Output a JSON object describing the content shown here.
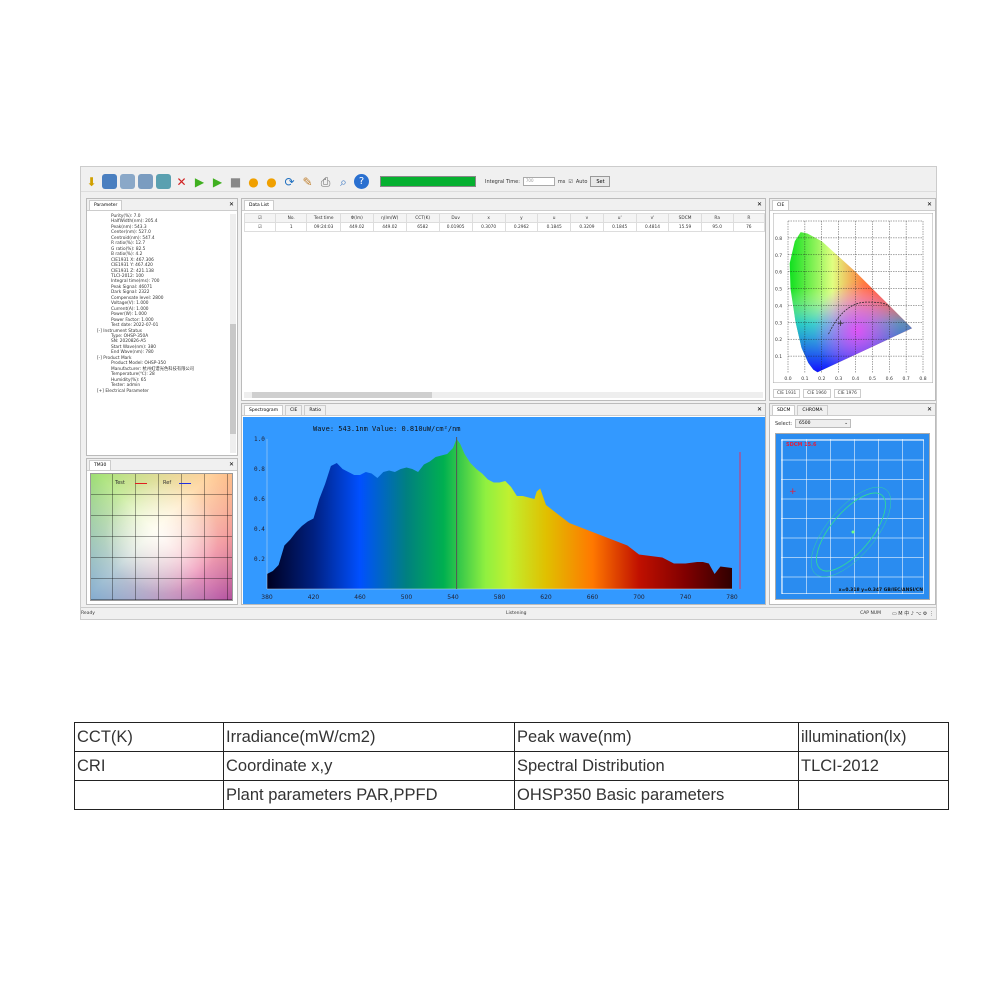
{
  "toolbar": {
    "integral_time_label": "Integral Time:",
    "integral_time_value": "700",
    "unit": "ms",
    "auto_label": "Auto",
    "set_label": "Set",
    "progress": 100,
    "icons": [
      "import-icon",
      "save-icon",
      "database-icon",
      "export-icon",
      "table-icon",
      "delete-icon",
      "play-icon",
      "play-continuous-icon",
      "stop-icon",
      "bulb-icon",
      "bulb-settings-icon",
      "refresh-icon",
      "edit-icon",
      "printer-icon",
      "search-document-icon",
      "help-icon"
    ]
  },
  "parameter": {
    "title": "Parameter",
    "items": [
      {
        "t": "Purity(%): 7.0",
        "lv": 1
      },
      {
        "t": "HalfWidth(nm): 205.4",
        "lv": 1
      },
      {
        "t": "Peak(nm): 543.3",
        "lv": 1
      },
      {
        "t": "Center(nm): 527.0",
        "lv": 1
      },
      {
        "t": "Centroid(nm): 547.4",
        "lv": 1
      },
      {
        "t": "R ratio(%): 12.7",
        "lv": 1
      },
      {
        "t": "G ratio(%): 82.5",
        "lv": 1
      },
      {
        "t": "B ratio(%): 4.2",
        "lv": 1
      },
      {
        "t": "CIE1931 X: 467.306",
        "lv": 1
      },
      {
        "t": "CIE1931 Y: 467.420",
        "lv": 1
      },
      {
        "t": "CIE1931 Z: 421.138",
        "lv": 1
      },
      {
        "t": "TLCI-2012: 100",
        "lv": 1
      },
      {
        "t": "Integral time(ms): 700",
        "lv": 1
      },
      {
        "t": "Peak Signal: 46071",
        "lv": 1
      },
      {
        "t": "Dark Signal: 2322",
        "lv": 1
      },
      {
        "t": "Compensate level: 2800",
        "lv": 1
      },
      {
        "t": "Voltage(V): 1.000",
        "lv": 1
      },
      {
        "t": "Current(A): 1.000",
        "lv": 1
      },
      {
        "t": "Power(W): 1.000",
        "lv": 1
      },
      {
        "t": "Power Factor: 1.000",
        "lv": 1
      },
      {
        "t": "Test date: 2022-07-01",
        "lv": 1
      },
      {
        "t": "[-] Instrument Status",
        "lv": 0
      },
      {
        "t": "Type: OHSP-350A",
        "lv": 1
      },
      {
        "t": "SN: 2020826-A5",
        "lv": 1
      },
      {
        "t": "Start Wave(nm): 380",
        "lv": 1
      },
      {
        "t": "End Wave(nm): 780",
        "lv": 1
      },
      {
        "t": "[-] Product Mark",
        "lv": 0
      },
      {
        "t": "Product Model: OHSP-350",
        "lv": 1
      },
      {
        "t": "Manufacturer: 杭州虹谱光色科技有限公司",
        "lv": 1
      },
      {
        "t": "Temperature(℃): 28",
        "lv": 1
      },
      {
        "t": "Humidity(%): 65",
        "lv": 1
      },
      {
        "t": "Tester: admin",
        "lv": 1
      },
      {
        "t": "[+] Electrical Parameter",
        "lv": 0
      }
    ]
  },
  "tm30": {
    "title": "TM30",
    "legend_test": "Test",
    "legend_ref": "Ref",
    "test_color": "#e02020",
    "ref_color": "#2030e0"
  },
  "datalist": {
    "title": "Data List",
    "headers": [
      "No.",
      "Test time",
      "Φ(lm)",
      "η(lm/W)",
      "CCT(K)",
      "Duv",
      "x",
      "y",
      "u",
      "v",
      "u'",
      "v'",
      "SDCM",
      "Ra",
      "R"
    ],
    "rows": [
      [
        "1",
        "09:24:03",
        "449.02",
        "449.02",
        "6582",
        "0.01905",
        "0.3070",
        "0.2962",
        "0.1845",
        "0.3209",
        "0.1845",
        "0.4814",
        "15.59",
        "95.0",
        "76"
      ]
    ]
  },
  "spectrum": {
    "tabs": [
      "Spectrogram",
      "CIE",
      "Ratio"
    ],
    "readout": "Wave: 543.1nm Value: 0.810uW/cm²/nm",
    "background": "#3399ff"
  },
  "chart_data": {
    "type": "area",
    "xlabel": "",
    "ylabel": "",
    "xlim": [
      380,
      780
    ],
    "ylim": [
      0,
      1.0
    ],
    "xticks": [
      "380",
      "420",
      "460",
      "500",
      "540",
      "580",
      "620",
      "660",
      "700",
      "740",
      "780"
    ],
    "yticks": [
      "0.2",
      "0.4",
      "0.6",
      "0.8",
      "1.0"
    ],
    "x": [
      380,
      385,
      390,
      395,
      400,
      405,
      410,
      415,
      420,
      425,
      430,
      435,
      440,
      445,
      450,
      455,
      460,
      465,
      470,
      475,
      480,
      485,
      490,
      495,
      500,
      505,
      510,
      515,
      520,
      525,
      530,
      535,
      540,
      543,
      546,
      550,
      555,
      560,
      565,
      570,
      575,
      580,
      585,
      590,
      595,
      600,
      605,
      610,
      612,
      615,
      620,
      630,
      640,
      650,
      660,
      670,
      680,
      690,
      700,
      710,
      720,
      730,
      740,
      750,
      755,
      760,
      765,
      770,
      780
    ],
    "y": [
      0.1,
      0.12,
      0.16,
      0.29,
      0.33,
      0.38,
      0.42,
      0.45,
      0.47,
      0.6,
      0.7,
      0.82,
      0.84,
      0.8,
      0.78,
      0.76,
      0.76,
      0.78,
      0.77,
      0.74,
      0.78,
      0.79,
      0.78,
      0.8,
      0.81,
      0.8,
      0.78,
      0.83,
      0.85,
      0.88,
      0.89,
      0.9,
      0.94,
      1.0,
      0.97,
      0.9,
      0.84,
      0.8,
      0.77,
      0.73,
      0.71,
      0.71,
      0.72,
      0.68,
      0.62,
      0.62,
      0.61,
      0.6,
      0.65,
      0.67,
      0.56,
      0.5,
      0.44,
      0.41,
      0.38,
      0.35,
      0.32,
      0.29,
      0.23,
      0.22,
      0.21,
      0.17,
      0.17,
      0.18,
      0.18,
      0.17,
      0.1,
      0.15,
      0.14
    ],
    "cursor_x": 543.1
  },
  "cie": {
    "title": "CIE",
    "tabs": [
      "CIE 1931",
      "CIE 1960",
      "CIE 1976"
    ],
    "xticks": [
      "0.0",
      "0.1",
      "0.2",
      "0.3",
      "0.4",
      "0.5",
      "0.6",
      "0.7",
      "0.8"
    ],
    "yticks": [
      "0.1",
      "0.2",
      "0.3",
      "0.4",
      "0.5",
      "0.6",
      "0.7",
      "0.8"
    ],
    "point": {
      "x": 0.307,
      "y": 0.296
    }
  },
  "sdcm": {
    "tabs": [
      "SDCM",
      "CHROMA"
    ],
    "select_label": "Select:",
    "select_value": "6500",
    "title": "SDCM 15.6",
    "coords": "x=0.318 y=0.347 GB/IEC/ANSI/CN"
  },
  "status": {
    "left": "Ready",
    "center": "Listening",
    "right": "CAP NUM"
  },
  "spec_table": [
    [
      "CCT(K)",
      "Irradiance(mW/cm2)",
      "Peak wave(nm)",
      "illumination(lx)"
    ],
    [
      "CRI",
      " Coordinate x,y",
      "Spectral Distribution",
      "TLCI-2012"
    ],
    [
      "",
      "Plant parameters PAR,PPFD",
      "OHSP350 Basic parameters",
      ""
    ]
  ]
}
